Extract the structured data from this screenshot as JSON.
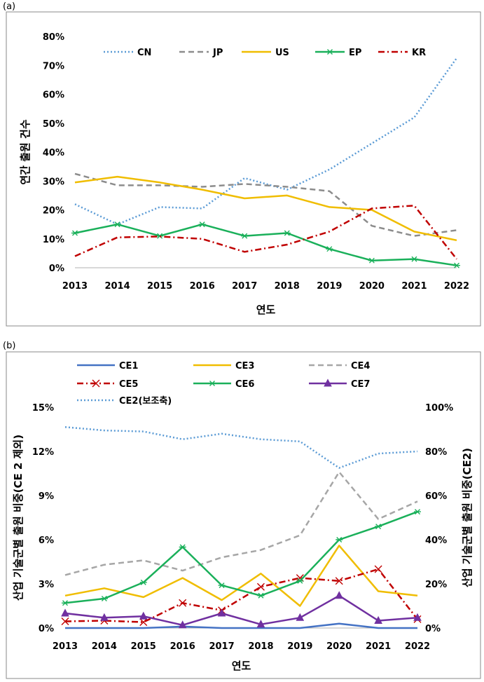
{
  "panels": {
    "a_label": "(a)",
    "b_label": "(b)"
  },
  "chart_data": [
    {
      "type": "line",
      "id": "a",
      "categories": [
        "2013",
        "2014",
        "2015",
        "2016",
        "2017",
        "2018",
        "2019",
        "2020",
        "2021",
        "2022"
      ],
      "xlabel": "연도",
      "ylabel": "연간 출원 건수",
      "ylim": [
        0,
        80
      ],
      "yticks": [
        "0%",
        "10%",
        "20%",
        "30%",
        "40%",
        "50%",
        "60%",
        "70%",
        "80%"
      ],
      "legend_position": "top",
      "series": [
        {
          "name": "CN",
          "color": "#5b9bd5",
          "dash": "dot",
          "marker": "none",
          "values": [
            22,
            15,
            21,
            20.5,
            31,
            27,
            34,
            43,
            52,
            72.5
          ]
        },
        {
          "name": "JP",
          "color": "#8c8c8c",
          "dash": "dash",
          "marker": "none",
          "values": [
            32.5,
            28.5,
            28.5,
            28,
            29,
            28,
            26.5,
            14.5,
            11,
            13
          ]
        },
        {
          "name": "US",
          "color": "#f0bd00",
          "dash": "solid",
          "marker": "none",
          "values": [
            29.5,
            31.5,
            29.5,
            27,
            24,
            25,
            21,
            20,
            12.5,
            9.5
          ]
        },
        {
          "name": "EP",
          "color": "#1ab05a",
          "dash": "solid",
          "marker": "star",
          "values": [
            12,
            15,
            11,
            15,
            11,
            12,
            6.5,
            2.5,
            3,
            0.8
          ]
        },
        {
          "name": "KR",
          "color": "#c00000",
          "dash": "dashdot",
          "marker": "none",
          "values": [
            4,
            10.5,
            10.8,
            10,
            5.5,
            8,
            12.5,
            20.5,
            21.5,
            3
          ]
        }
      ]
    },
    {
      "type": "line",
      "id": "b",
      "categories": [
        "2013",
        "2014",
        "2015",
        "2016",
        "2017",
        "2018",
        "2019",
        "2020",
        "2021",
        "2022"
      ],
      "xlabel": "연도",
      "ylabel": "산업 기술군별 출원 비중(CE 2 제외)",
      "ylabel_right": "산업 기술군별 출원 비중(CE2)",
      "ylim": [
        0,
        15
      ],
      "ylim_right": [
        0,
        100
      ],
      "yticks": [
        "0%",
        "3%",
        "6%",
        "9%",
        "12%",
        "15%"
      ],
      "yticks_right": [
        "0%",
        "20%",
        "40%",
        "60%",
        "80%",
        "100%"
      ],
      "legend_position": "top",
      "series": [
        {
          "name": "CE1",
          "color": "#4472c4",
          "dash": "solid",
          "marker": "none",
          "axis": "left",
          "values": [
            0,
            0,
            0,
            0.1,
            0,
            0,
            0,
            0.3,
            0,
            0
          ]
        },
        {
          "name": "CE3",
          "color": "#f0bd00",
          "dash": "solid",
          "marker": "none",
          "axis": "left",
          "values": [
            2.2,
            2.7,
            2.1,
            3.4,
            1.9,
            3.7,
            1.5,
            5.6,
            2.5,
            2.2
          ]
        },
        {
          "name": "CE4",
          "color": "#a6a6a6",
          "dash": "dash",
          "marker": "none",
          "axis": "left",
          "values": [
            3.6,
            4.3,
            4.6,
            3.9,
            4.8,
            5.3,
            6.3,
            10.6,
            7.4,
            8.6
          ]
        },
        {
          "name": "CE5",
          "color": "#c00000",
          "dash": "dashdot",
          "marker": "x",
          "axis": "left",
          "values": [
            0.45,
            0.5,
            0.4,
            1.7,
            1.2,
            2.8,
            3.4,
            3.2,
            4.0,
            0.6
          ]
        },
        {
          "name": "CE6",
          "color": "#1ab05a",
          "dash": "solid",
          "marker": "star",
          "axis": "left",
          "values": [
            1.7,
            2.0,
            3.1,
            5.5,
            2.9,
            2.2,
            3.2,
            6.0,
            6.9,
            7.9
          ]
        },
        {
          "name": "CE7",
          "color": "#7030a0",
          "dash": "solid",
          "marker": "triangle",
          "axis": "left",
          "values": [
            1.0,
            0.7,
            0.8,
            0.2,
            1.0,
            0.25,
            0.7,
            2.2,
            0.5,
            0.7
          ]
        },
        {
          "name": "CE2(보조축)",
          "color": "#5b9bd5",
          "dash": "dot",
          "marker": "none",
          "axis": "right",
          "values": [
            91,
            89.5,
            89,
            85.5,
            88,
            85.5,
            84.5,
            72.5,
            79,
            80
          ]
        }
      ]
    }
  ]
}
